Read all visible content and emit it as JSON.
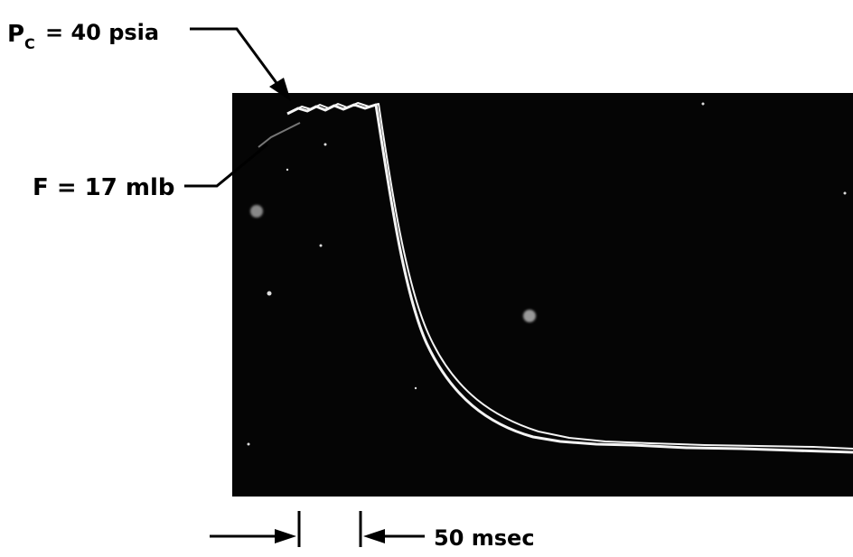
{
  "pressure_label": {
    "symbol": "P",
    "subscript": "C",
    "text": "= 40 psia"
  },
  "force_label": "F = 17 mlb",
  "time_scale_label": "50 msec"
}
